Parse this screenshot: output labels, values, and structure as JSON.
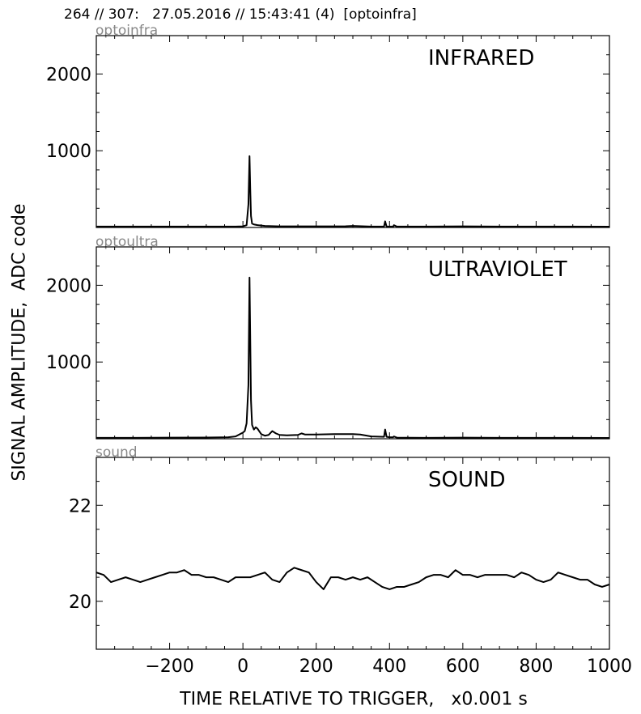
{
  "header": "264 // 307:   27.05.2016 // 15:43:41 (4)  [optoinfra]",
  "chart_data": {
    "type": "line",
    "ylabel": "SIGNAL AMPLITUDE,  ADC code",
    "xlabel": "TIME RELATIVE TO TRIGGER,   x0.001 s",
    "xlim": [
      -400,
      1000
    ],
    "xticks": [
      -200,
      0,
      200,
      400,
      600,
      800,
      1000
    ],
    "xtick_labels": [
      "−200",
      "0",
      "200",
      "400",
      "600",
      "800",
      "1000"
    ],
    "line_color": "#000000",
    "panels": [
      {
        "channel": "optoinfra",
        "title": "INFRARED",
        "ylim": [
          0,
          2500
        ],
        "yticks": [
          1000,
          2000
        ],
        "ytick_labels": [
          "1000",
          "2000"
        ],
        "series": [
          {
            "x": [
              -400,
              -300,
              -200,
              -100,
              -20,
              0,
              10,
              15,
              18,
              20,
              22,
              25,
              30,
              40,
              60,
              100,
              200,
              280,
              300,
              350,
              385,
              388,
              392,
              400,
              410,
              412,
              420,
              500,
              600,
              700,
              800,
              900,
              1000
            ],
            "y": [
              12,
              12,
              12,
              12,
              12,
              15,
              30,
              300,
              930,
              500,
              150,
              50,
              40,
              30,
              20,
              15,
              14,
              16,
              20,
              12,
              12,
              80,
              12,
              12,
              12,
              30,
              12,
              12,
              14,
              12,
              12,
              12,
              10
            ]
          }
        ]
      },
      {
        "channel": "optoultra",
        "title": "ULTRAVIOLET",
        "ylim": [
          0,
          2500
        ],
        "yticks": [
          1000,
          2000
        ],
        "ytick_labels": [
          "1000",
          "2000"
        ],
        "series": [
          {
            "x": [
              -400,
              -300,
              -200,
              -100,
              -40,
              -20,
              0,
              5,
              10,
              15,
              18,
              20,
              22,
              25,
              30,
              35,
              40,
              50,
              60,
              70,
              80,
              90,
              100,
              120,
              150,
              160,
              170,
              200,
              250,
              300,
              320,
              350,
              385,
              388,
              392,
              400,
              410,
              412,
              420,
              500,
              600,
              700,
              800,
              900,
              1000
            ],
            "y": [
              12,
              12,
              14,
              16,
              20,
              30,
              80,
              100,
              200,
              700,
              2100,
              1300,
              500,
              180,
              120,
              150,
              130,
              60,
              40,
              50,
              100,
              70,
              50,
              45,
              50,
              70,
              55,
              55,
              60,
              60,
              55,
              30,
              25,
              120,
              25,
              20,
              20,
              30,
              15,
              12,
              14,
              12,
              12,
              12,
              10
            ]
          }
        ]
      },
      {
        "channel": "sound",
        "title": "SOUND",
        "ylim": [
          19,
          23
        ],
        "yticks": [
          20,
          22
        ],
        "ytick_labels": [
          "20",
          "22"
        ],
        "series": [
          {
            "x": [
              -400,
              -380,
              -360,
              -340,
              -320,
              -300,
              -280,
              -260,
              -240,
              -220,
              -200,
              -180,
              -160,
              -140,
              -120,
              -100,
              -80,
              -60,
              -40,
              -20,
              0,
              20,
              40,
              60,
              80,
              100,
              120,
              140,
              160,
              180,
              200,
              220,
              240,
              260,
              280,
              300,
              320,
              340,
              360,
              380,
              400,
              420,
              440,
              460,
              480,
              500,
              520,
              540,
              560,
              580,
              600,
              620,
              640,
              660,
              680,
              700,
              720,
              740,
              760,
              780,
              800,
              820,
              840,
              860,
              880,
              900,
              920,
              940,
              960,
              980,
              1000
            ],
            "y": [
              20.6,
              20.55,
              20.4,
              20.45,
              20.5,
              20.45,
              20.4,
              20.45,
              20.5,
              20.55,
              20.6,
              20.6,
              20.65,
              20.55,
              20.55,
              20.5,
              20.5,
              20.45,
              20.4,
              20.5,
              20.5,
              20.5,
              20.55,
              20.6,
              20.45,
              20.4,
              20.6,
              20.7,
              20.65,
              20.6,
              20.4,
              20.25,
              20.5,
              20.5,
              20.45,
              20.5,
              20.45,
              20.5,
              20.4,
              20.3,
              20.25,
              20.3,
              20.3,
              20.35,
              20.4,
              20.5,
              20.55,
              20.55,
              20.5,
              20.65,
              20.55,
              20.55,
              20.5,
              20.55,
              20.55,
              20.55,
              20.55,
              20.5,
              20.6,
              20.55,
              20.45,
              20.4,
              20.45,
              20.6,
              20.55,
              20.5,
              20.45,
              20.45,
              20.35,
              20.3,
              20.35
            ]
          }
        ]
      }
    ]
  }
}
